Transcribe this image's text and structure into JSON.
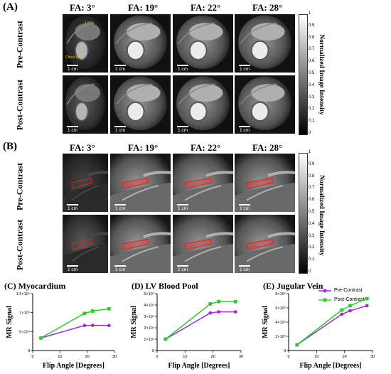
{
  "panels": {
    "A": {
      "label": "(A)"
    },
    "B": {
      "label": "(B)"
    }
  },
  "flip_angles": [
    "FA: 3°",
    "FA: 19°",
    "FA: 22°",
    "FA: 28°"
  ],
  "row_labels": {
    "pre": "Pre-Contrast",
    "post": "Post-Contrast"
  },
  "scale_bar": "1 cm",
  "colorbar": {
    "label": "Normalized Image Intensity",
    "ticks": [
      "1",
      "0.9",
      "0.8",
      "0.7",
      "0.6",
      "0.5",
      "0.4",
      "0.3",
      "0.2",
      "0.1",
      "0"
    ]
  },
  "annotations": {
    "liver": "Liver",
    "lv": "LV",
    "chest_wall": "Chest Wall"
  },
  "legend": {
    "pre": {
      "label": "Pre-Contrast",
      "color": "#9b30d9"
    },
    "post": {
      "label": "Post-Contrast",
      "color": "#2ecc2e"
    }
  },
  "axes": {
    "ylabel": "MR Signal",
    "xlabel": "Flip Angle [Degrees]"
  },
  "chart_data": [
    {
      "type": "line",
      "panel": "(C)",
      "title": "Myocardium",
      "x": [
        3,
        19,
        22,
        28
      ],
      "xlim": [
        0,
        30
      ],
      "xticks": [
        "0",
        "10",
        "20",
        "30"
      ],
      "ylim": [
        0,
        150000
      ],
      "yticks": [
        "0",
        "5×10⁴",
        "1×10⁵",
        "1.5×10⁵"
      ],
      "ytick_values": [
        0,
        50000,
        100000,
        150000
      ],
      "series": [
        {
          "name": "Pre-Contrast",
          "values": [
            33000,
            66000,
            66500,
            66000
          ]
        },
        {
          "name": "Post-Contrast",
          "values": [
            33000,
            98000,
            104000,
            110000
          ]
        }
      ]
    },
    {
      "type": "line",
      "panel": "(D)",
      "title": "LV Blood Pool",
      "x": [
        3,
        19,
        22,
        28
      ],
      "xlim": [
        0,
        30
      ],
      "xticks": [
        "0",
        "10",
        "20",
        "30"
      ],
      "ylim": [
        0,
        500000
      ],
      "yticks": [
        "0",
        "1×10⁵",
        "2×10⁵",
        "3×10⁵",
        "4×10⁵",
        "5×10⁵"
      ],
      "ytick_values": [
        0,
        100000,
        200000,
        300000,
        400000,
        500000
      ],
      "series": [
        {
          "name": "Pre-Contrast",
          "values": [
            100000,
            330000,
            340000,
            340000
          ]
        },
        {
          "name": "Post-Contrast",
          "values": [
            100000,
            410000,
            430000,
            430000
          ]
        }
      ]
    },
    {
      "type": "line",
      "panel": "(E)",
      "title": "Jugular Vein",
      "x": [
        3,
        19,
        22,
        28
      ],
      "xlim": [
        0,
        30
      ],
      "xticks": [
        "0",
        "10",
        "20",
        "30"
      ],
      "ylim": [
        0,
        800000
      ],
      "yticks": [
        "0",
        "2×10⁵",
        "4×10⁵",
        "6×10⁵",
        "8×10⁵"
      ],
      "ytick_values": [
        0,
        200000,
        400000,
        600000,
        800000
      ],
      "series": [
        {
          "name": "Pre-Contrast",
          "values": [
            80000,
            510000,
            560000,
            630000
          ]
        },
        {
          "name": "Post-Contrast",
          "values": [
            80000,
            570000,
            630000,
            730000
          ]
        }
      ]
    }
  ]
}
